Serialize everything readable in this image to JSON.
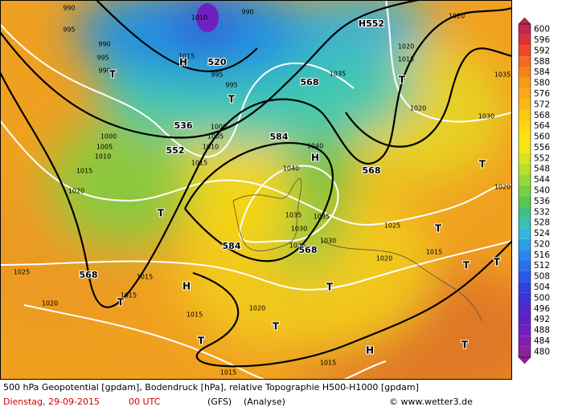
{
  "map": {
    "labels": [
      "990",
      "995",
      "990",
      "995",
      "990",
      "1010",
      "990",
      "1015",
      "995",
      "995",
      "1035",
      "1020",
      "1020",
      "1015",
      "1035",
      "1020",
      "1030",
      "1000",
      "1005",
      "1010",
      "1000",
      "1005",
      "1010",
      "1015",
      "1040",
      "1040",
      "1015",
      "1020",
      "1020",
      "1035",
      "1035",
      "1030",
      "1025",
      "1025",
      "1030",
      "1015",
      "1020",
      "1025",
      "1015",
      "1015",
      "1020",
      "1020",
      "1015",
      "1015",
      "1015"
    ],
    "geopotential_labels": [
      "H552",
      "520",
      "536",
      "552",
      "568",
      "584",
      "568",
      "584",
      "568",
      "568"
    ],
    "pressure_centers": [
      "T",
      "H",
      "T",
      "T",
      "H",
      "T",
      "T",
      "T",
      "T",
      "T",
      "H",
      "T",
      "T",
      "T",
      "T",
      "H",
      "T"
    ]
  },
  "legend": {
    "values": [
      600,
      596,
      592,
      588,
      584,
      580,
      576,
      572,
      568,
      564,
      560,
      556,
      552,
      548,
      544,
      540,
      536,
      532,
      528,
      524,
      520,
      516,
      512,
      508,
      504,
      500,
      496,
      492,
      488,
      484,
      480
    ]
  },
  "caption": {
    "line1": "500 hPa Geopotential [gpdam], Bodendruck [hPa], relative Topographie H500-H1000 [gpdam]",
    "date": "Dienstag, 29-09-2015",
    "time": "00 UTC",
    "model": "(GFS)",
    "analysis": "(Analyse)",
    "copyright": "© www.wetter3.de"
  }
}
